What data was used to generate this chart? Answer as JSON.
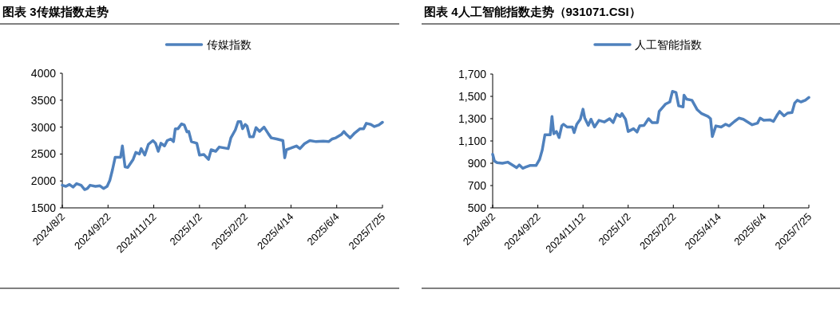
{
  "chart_data": [
    {
      "type": "line",
      "title": "图表 3传媒指数走势",
      "legend": "top",
      "grid": false,
      "xlim": [
        "2024-08-02",
        "2025-07-25"
      ],
      "xticks": [
        {
          "value": "2024-08-02",
          "label": "2024/8/2"
        },
        {
          "value": "2024-09-22",
          "label": "2024/9/22"
        },
        {
          "value": "2024-11-12",
          "label": "2024/11/12"
        },
        {
          "value": "2025-01-02",
          "label": "2025/1/2"
        },
        {
          "value": "2025-02-22",
          "label": "2025/2/22"
        },
        {
          "value": "2025-04-14",
          "label": "2025/4/14"
        },
        {
          "value": "2025-06-04",
          "label": "2025/6/4"
        },
        {
          "value": "2025-07-25",
          "label": "2025/7/25"
        }
      ],
      "ylim": [
        1500,
        4000
      ],
      "yticks": [
        1500,
        2000,
        2500,
        3000,
        3500,
        4000
      ],
      "series": [
        {
          "name": "传媒指数",
          "color": "#4f81bd",
          "x": [
            "2024-08-02",
            "2024-08-06",
            "2024-08-10",
            "2024-08-14",
            "2024-08-18",
            "2024-08-23",
            "2024-08-27",
            "2024-08-30",
            "2024-09-02",
            "2024-09-08",
            "2024-09-13",
            "2024-09-17",
            "2024-09-21",
            "2024-09-24",
            "2024-09-27",
            "2024-09-30",
            "2024-10-06",
            "2024-10-08",
            "2024-10-11",
            "2024-10-14",
            "2024-10-20",
            "2024-10-23",
            "2024-10-27",
            "2024-10-29",
            "2024-11-02",
            "2024-11-06",
            "2024-11-11",
            "2024-11-14",
            "2024-11-17",
            "2024-11-20",
            "2024-11-24",
            "2024-11-27",
            "2024-12-01",
            "2024-12-04",
            "2024-12-06",
            "2024-12-09",
            "2024-12-13",
            "2024-12-16",
            "2024-12-19",
            "2024-12-21",
            "2024-12-24",
            "2024-12-30",
            "2025-01-02",
            "2025-01-07",
            "2025-01-12",
            "2025-01-15",
            "2025-01-20",
            "2025-01-24",
            "2025-02-03",
            "2025-02-06",
            "2025-02-11",
            "2025-02-14",
            "2025-02-17",
            "2025-02-19",
            "2025-02-22",
            "2025-02-24",
            "2025-02-27",
            "2025-03-03",
            "2025-03-06",
            "2025-03-10",
            "2025-03-15",
            "2025-03-20",
            "2025-03-23",
            "2025-03-29",
            "2025-04-05",
            "2025-04-07",
            "2025-04-09",
            "2025-04-14",
            "2025-04-20",
            "2025-04-24",
            "2025-04-29",
            "2025-05-05",
            "2025-05-12",
            "2025-05-20",
            "2025-05-26",
            "2025-05-30",
            "2025-06-03",
            "2025-06-09",
            "2025-06-12",
            "2025-06-15",
            "2025-06-19",
            "2025-06-24",
            "2025-06-30",
            "2025-07-04",
            "2025-07-07",
            "2025-07-12",
            "2025-07-16",
            "2025-07-21",
            "2025-07-25"
          ],
          "values": [
            1920,
            1900,
            1935,
            1885,
            1950,
            1920,
            1840,
            1860,
            1920,
            1900,
            1910,
            1860,
            1900,
            2010,
            2210,
            2440,
            2440,
            2650,
            2260,
            2250,
            2400,
            2530,
            2500,
            2600,
            2480,
            2680,
            2750,
            2700,
            2550,
            2700,
            2650,
            2750,
            2780,
            2730,
            2970,
            2970,
            3060,
            3040,
            2910,
            2920,
            2730,
            2700,
            2480,
            2490,
            2400,
            2580,
            2550,
            2630,
            2600,
            2800,
            2950,
            3100,
            3100,
            2970,
            3050,
            3020,
            2820,
            2820,
            2990,
            2920,
            3000,
            2870,
            2800,
            2780,
            2750,
            2430,
            2580,
            2610,
            2650,
            2600,
            2690,
            2750,
            2730,
            2740,
            2730,
            2780,
            2800,
            2860,
            2920,
            2860,
            2800,
            2890,
            2970,
            2970,
            3070,
            3050,
            3010,
            3040,
            3090
          ]
        }
      ]
    },
    {
      "type": "line",
      "title": "图表 4人工智能指数走势（931071.CSI）",
      "legend": "top",
      "grid": false,
      "xlim": [
        "2024-08-02",
        "2025-07-25"
      ],
      "xticks": [
        {
          "value": "2024-08-02",
          "label": "2024/8/2"
        },
        {
          "value": "2024-09-22",
          "label": "2024/9/22"
        },
        {
          "value": "2024-11-12",
          "label": "2024/11/12"
        },
        {
          "value": "2025-01-02",
          "label": "2025/1/2"
        },
        {
          "value": "2025-02-22",
          "label": "2025/2/22"
        },
        {
          "value": "2025-04-14",
          "label": "2025/4/14"
        },
        {
          "value": "2025-06-04",
          "label": "2025/6/4"
        },
        {
          "value": "2025-07-25",
          "label": "2025/7/25"
        }
      ],
      "ylim": [
        500,
        1700
      ],
      "yticks": [
        500,
        700,
        900,
        {
          "value": 1100,
          "label": "1,100"
        },
        {
          "value": 1300,
          "label": "1,300"
        },
        {
          "value": 1500,
          "label": "1,500"
        },
        {
          "value": 1700,
          "label": "1,700"
        }
      ],
      "series": [
        {
          "name": "人工智能指数",
          "color": "#4f81bd",
          "x": [
            "2024-08-02",
            "2024-08-04",
            "2024-08-07",
            "2024-08-13",
            "2024-08-19",
            "2024-08-24",
            "2024-08-29",
            "2024-09-01",
            "2024-09-05",
            "2024-09-08",
            "2024-09-13",
            "2024-09-20",
            "2024-09-24",
            "2024-09-27",
            "2024-09-30",
            "2024-10-06",
            "2024-10-08",
            "2024-10-10",
            "2024-10-13",
            "2024-10-16",
            "2024-10-19",
            "2024-10-21",
            "2024-10-25",
            "2024-10-31",
            "2024-11-02",
            "2024-11-05",
            "2024-11-09",
            "2024-11-12",
            "2024-11-14",
            "2024-11-18",
            "2024-11-21",
            "2024-11-25",
            "2024-11-30",
            "2024-12-06",
            "2024-12-12",
            "2024-12-16",
            "2024-12-20",
            "2024-12-24",
            "2024-12-26",
            "2024-12-30",
            "2025-01-02",
            "2025-01-08",
            "2025-01-12",
            "2025-01-15",
            "2025-01-20",
            "2025-01-25",
            "2025-01-29",
            "2025-02-04",
            "2025-02-06",
            "2025-02-13",
            "2025-02-18",
            "2025-02-21",
            "2025-02-25",
            "2025-02-28",
            "2025-03-05",
            "2025-03-06",
            "2025-03-09",
            "2025-03-15",
            "2025-03-21",
            "2025-03-26",
            "2025-04-02",
            "2025-04-05",
            "2025-04-07",
            "2025-04-11",
            "2025-04-17",
            "2025-04-22",
            "2025-04-26",
            "2025-05-02",
            "2025-05-07",
            "2025-05-12",
            "2025-05-17",
            "2025-05-22",
            "2025-05-28",
            "2025-05-31",
            "2025-06-04",
            "2025-06-11",
            "2025-06-15",
            "2025-06-19",
            "2025-06-22",
            "2025-06-27",
            "2025-07-01",
            "2025-07-06",
            "2025-07-09",
            "2025-07-12",
            "2025-07-16",
            "2025-07-21",
            "2025-07-25"
          ],
          "values": [
            980,
            920,
            905,
            900,
            910,
            885,
            860,
            885,
            855,
            865,
            880,
            880,
            935,
            1020,
            1155,
            1155,
            1320,
            1165,
            1185,
            1130,
            1235,
            1250,
            1225,
            1225,
            1175,
            1250,
            1295,
            1385,
            1305,
            1240,
            1295,
            1225,
            1285,
            1270,
            1300,
            1265,
            1340,
            1320,
            1345,
            1295,
            1185,
            1210,
            1180,
            1235,
            1240,
            1300,
            1265,
            1265,
            1365,
            1430,
            1450,
            1545,
            1535,
            1415,
            1405,
            1510,
            1475,
            1465,
            1380,
            1345,
            1320,
            1300,
            1140,
            1235,
            1225,
            1250,
            1235,
            1275,
            1305,
            1295,
            1270,
            1245,
            1260,
            1305,
            1285,
            1290,
            1275,
            1330,
            1365,
            1325,
            1350,
            1355,
            1440,
            1465,
            1450,
            1465,
            1490
          ]
        }
      ]
    }
  ]
}
